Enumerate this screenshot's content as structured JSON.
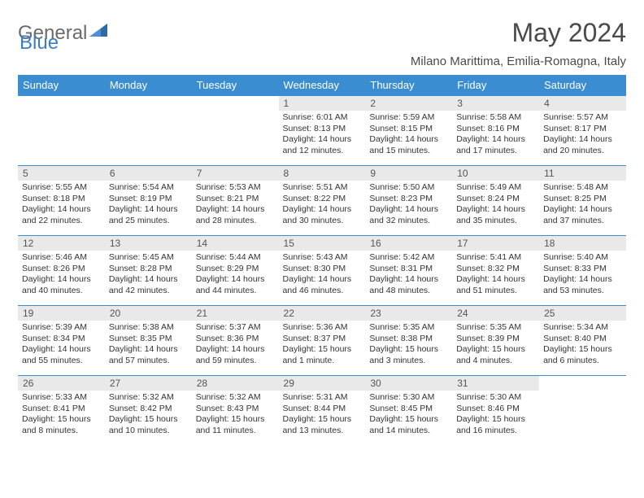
{
  "brand": {
    "part1": "General",
    "part2": "Blue"
  },
  "title": "May 2024",
  "location": "Milano Marittima, Emilia-Romagna, Italy",
  "colors": {
    "header_bg": "#3a8dd0",
    "header_text": "#ffffff",
    "daynum_bg": "#e9e9e9",
    "border": "#3a8dd0",
    "brand_gray": "#6b6b6b",
    "brand_blue": "#3a7fc3"
  },
  "weekdays": [
    "Sunday",
    "Monday",
    "Tuesday",
    "Wednesday",
    "Thursday",
    "Friday",
    "Saturday"
  ],
  "weeks": [
    [
      null,
      null,
      null,
      {
        "d": "1",
        "sr": "Sunrise: 6:01 AM",
        "ss": "Sunset: 8:13 PM",
        "dl1": "Daylight: 14 hours",
        "dl2": "and 12 minutes."
      },
      {
        "d": "2",
        "sr": "Sunrise: 5:59 AM",
        "ss": "Sunset: 8:15 PM",
        "dl1": "Daylight: 14 hours",
        "dl2": "and 15 minutes."
      },
      {
        "d": "3",
        "sr": "Sunrise: 5:58 AM",
        "ss": "Sunset: 8:16 PM",
        "dl1": "Daylight: 14 hours",
        "dl2": "and 17 minutes."
      },
      {
        "d": "4",
        "sr": "Sunrise: 5:57 AM",
        "ss": "Sunset: 8:17 PM",
        "dl1": "Daylight: 14 hours",
        "dl2": "and 20 minutes."
      }
    ],
    [
      {
        "d": "5",
        "sr": "Sunrise: 5:55 AM",
        "ss": "Sunset: 8:18 PM",
        "dl1": "Daylight: 14 hours",
        "dl2": "and 22 minutes."
      },
      {
        "d": "6",
        "sr": "Sunrise: 5:54 AM",
        "ss": "Sunset: 8:19 PM",
        "dl1": "Daylight: 14 hours",
        "dl2": "and 25 minutes."
      },
      {
        "d": "7",
        "sr": "Sunrise: 5:53 AM",
        "ss": "Sunset: 8:21 PM",
        "dl1": "Daylight: 14 hours",
        "dl2": "and 28 minutes."
      },
      {
        "d": "8",
        "sr": "Sunrise: 5:51 AM",
        "ss": "Sunset: 8:22 PM",
        "dl1": "Daylight: 14 hours",
        "dl2": "and 30 minutes."
      },
      {
        "d": "9",
        "sr": "Sunrise: 5:50 AM",
        "ss": "Sunset: 8:23 PM",
        "dl1": "Daylight: 14 hours",
        "dl2": "and 32 minutes."
      },
      {
        "d": "10",
        "sr": "Sunrise: 5:49 AM",
        "ss": "Sunset: 8:24 PM",
        "dl1": "Daylight: 14 hours",
        "dl2": "and 35 minutes."
      },
      {
        "d": "11",
        "sr": "Sunrise: 5:48 AM",
        "ss": "Sunset: 8:25 PM",
        "dl1": "Daylight: 14 hours",
        "dl2": "and 37 minutes."
      }
    ],
    [
      {
        "d": "12",
        "sr": "Sunrise: 5:46 AM",
        "ss": "Sunset: 8:26 PM",
        "dl1": "Daylight: 14 hours",
        "dl2": "and 40 minutes."
      },
      {
        "d": "13",
        "sr": "Sunrise: 5:45 AM",
        "ss": "Sunset: 8:28 PM",
        "dl1": "Daylight: 14 hours",
        "dl2": "and 42 minutes."
      },
      {
        "d": "14",
        "sr": "Sunrise: 5:44 AM",
        "ss": "Sunset: 8:29 PM",
        "dl1": "Daylight: 14 hours",
        "dl2": "and 44 minutes."
      },
      {
        "d": "15",
        "sr": "Sunrise: 5:43 AM",
        "ss": "Sunset: 8:30 PM",
        "dl1": "Daylight: 14 hours",
        "dl2": "and 46 minutes."
      },
      {
        "d": "16",
        "sr": "Sunrise: 5:42 AM",
        "ss": "Sunset: 8:31 PM",
        "dl1": "Daylight: 14 hours",
        "dl2": "and 48 minutes."
      },
      {
        "d": "17",
        "sr": "Sunrise: 5:41 AM",
        "ss": "Sunset: 8:32 PM",
        "dl1": "Daylight: 14 hours",
        "dl2": "and 51 minutes."
      },
      {
        "d": "18",
        "sr": "Sunrise: 5:40 AM",
        "ss": "Sunset: 8:33 PM",
        "dl1": "Daylight: 14 hours",
        "dl2": "and 53 minutes."
      }
    ],
    [
      {
        "d": "19",
        "sr": "Sunrise: 5:39 AM",
        "ss": "Sunset: 8:34 PM",
        "dl1": "Daylight: 14 hours",
        "dl2": "and 55 minutes."
      },
      {
        "d": "20",
        "sr": "Sunrise: 5:38 AM",
        "ss": "Sunset: 8:35 PM",
        "dl1": "Daylight: 14 hours",
        "dl2": "and 57 minutes."
      },
      {
        "d": "21",
        "sr": "Sunrise: 5:37 AM",
        "ss": "Sunset: 8:36 PM",
        "dl1": "Daylight: 14 hours",
        "dl2": "and 59 minutes."
      },
      {
        "d": "22",
        "sr": "Sunrise: 5:36 AM",
        "ss": "Sunset: 8:37 PM",
        "dl1": "Daylight: 15 hours",
        "dl2": "and 1 minute."
      },
      {
        "d": "23",
        "sr": "Sunrise: 5:35 AM",
        "ss": "Sunset: 8:38 PM",
        "dl1": "Daylight: 15 hours",
        "dl2": "and 3 minutes."
      },
      {
        "d": "24",
        "sr": "Sunrise: 5:35 AM",
        "ss": "Sunset: 8:39 PM",
        "dl1": "Daylight: 15 hours",
        "dl2": "and 4 minutes."
      },
      {
        "d": "25",
        "sr": "Sunrise: 5:34 AM",
        "ss": "Sunset: 8:40 PM",
        "dl1": "Daylight: 15 hours",
        "dl2": "and 6 minutes."
      }
    ],
    [
      {
        "d": "26",
        "sr": "Sunrise: 5:33 AM",
        "ss": "Sunset: 8:41 PM",
        "dl1": "Daylight: 15 hours",
        "dl2": "and 8 minutes."
      },
      {
        "d": "27",
        "sr": "Sunrise: 5:32 AM",
        "ss": "Sunset: 8:42 PM",
        "dl1": "Daylight: 15 hours",
        "dl2": "and 10 minutes."
      },
      {
        "d": "28",
        "sr": "Sunrise: 5:32 AM",
        "ss": "Sunset: 8:43 PM",
        "dl1": "Daylight: 15 hours",
        "dl2": "and 11 minutes."
      },
      {
        "d": "29",
        "sr": "Sunrise: 5:31 AM",
        "ss": "Sunset: 8:44 PM",
        "dl1": "Daylight: 15 hours",
        "dl2": "and 13 minutes."
      },
      {
        "d": "30",
        "sr": "Sunrise: 5:30 AM",
        "ss": "Sunset: 8:45 PM",
        "dl1": "Daylight: 15 hours",
        "dl2": "and 14 minutes."
      },
      {
        "d": "31",
        "sr": "Sunrise: 5:30 AM",
        "ss": "Sunset: 8:46 PM",
        "dl1": "Daylight: 15 hours",
        "dl2": "and 16 minutes."
      },
      null
    ]
  ]
}
